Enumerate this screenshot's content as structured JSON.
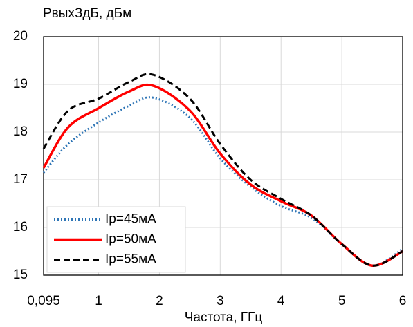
{
  "chart_data": {
    "type": "line",
    "y_label": "PвыхЗдБ, дБм",
    "x_label": "Частота, ГГц",
    "x": [
      0.095,
      0.5,
      1,
      1.5,
      1.9,
      2.5,
      3,
      3.5,
      4,
      4.5,
      5,
      5.5,
      6
    ],
    "series": [
      {
        "name": "Ip=45мА",
        "color": "#2e75b6",
        "dash": "dotted",
        "values": [
          17.15,
          17.75,
          18.2,
          18.55,
          18.72,
          18.3,
          17.45,
          16.85,
          16.45,
          16.2,
          15.65,
          15.2,
          15.55
        ]
      },
      {
        "name": "Ip=50мА",
        "color": "#ff0000",
        "dash": "solid",
        "values": [
          17.25,
          18.1,
          18.5,
          18.85,
          18.97,
          18.45,
          17.55,
          16.9,
          16.55,
          16.25,
          15.65,
          15.2,
          15.5
        ]
      },
      {
        "name": "Ip=55мА",
        "color": "#000000",
        "dash": "dashed",
        "values": [
          17.65,
          18.45,
          18.7,
          19.05,
          19.2,
          18.7,
          17.75,
          17.0,
          16.6,
          16.25,
          15.65,
          15.2,
          15.5
        ]
      }
    ],
    "xlim": [
      0.095,
      6
    ],
    "xticks": [
      {
        "value": 0.095,
        "label": "0,095"
      },
      1,
      2,
      3,
      4,
      5,
      6
    ],
    "ylim": [
      15,
      20
    ],
    "yticks": [
      15,
      16,
      17,
      18,
      19,
      20
    ],
    "grid": true,
    "legend": "lower-left"
  }
}
